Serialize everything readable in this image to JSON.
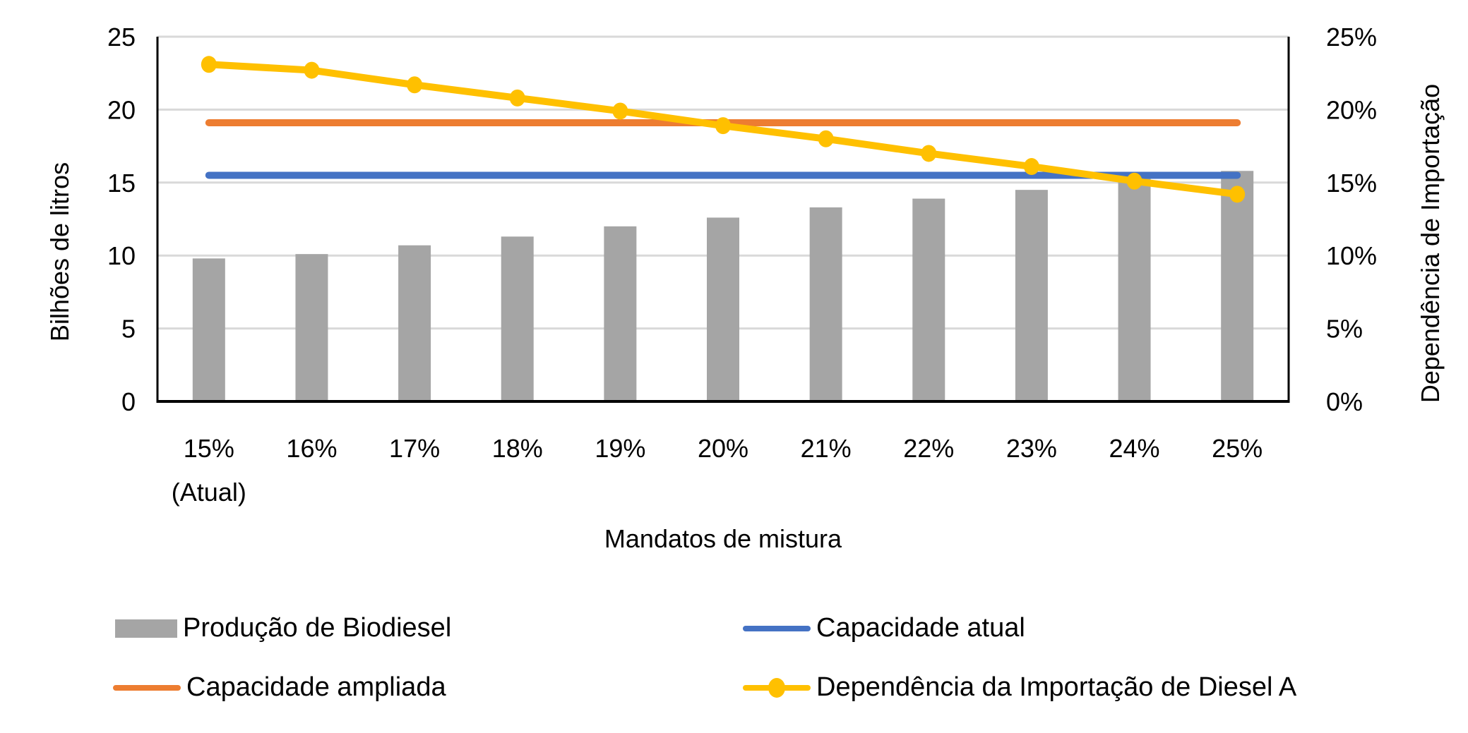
{
  "chart_data": {
    "type": "bar+line",
    "title": "",
    "xlabel": "Mandatos de mistura",
    "ylabel": "Bilhões de litros",
    "y2label": "Dependência de Importação",
    "categories": [
      [
        "15%",
        "(Atual)"
      ],
      [
        "16%"
      ],
      [
        "17%"
      ],
      [
        "18%"
      ],
      [
        "19%"
      ],
      [
        "20%"
      ],
      [
        "21%"
      ],
      [
        "22%"
      ],
      [
        "23%"
      ],
      [
        "24%"
      ],
      [
        "25%"
      ]
    ],
    "ylim": [
      0,
      25
    ],
    "yticks": [
      "0",
      "5",
      "10",
      "15",
      "20",
      "25"
    ],
    "y2lim": [
      0,
      25
    ],
    "y2ticks": [
      "0%",
      "5%",
      "10%",
      "15%",
      "20%",
      "25%"
    ],
    "grid": true,
    "legend_position": "bottom",
    "series": [
      {
        "name": "Produção de Biodiesel",
        "kind": "bar",
        "axis": "left",
        "color": "#a5a5a5",
        "values": [
          9.8,
          10.1,
          10.7,
          11.3,
          12.0,
          12.6,
          13.3,
          13.9,
          14.5,
          15.3,
          15.8
        ]
      },
      {
        "name": "Capacidade atual",
        "kind": "line",
        "axis": "left",
        "color": "#4472c4",
        "values": [
          15.5,
          15.5,
          15.5,
          15.5,
          15.5,
          15.5,
          15.5,
          15.5,
          15.5,
          15.5,
          15.5
        ]
      },
      {
        "name": "Capacidade ampliada",
        "kind": "line",
        "axis": "left",
        "color": "#ed7d31",
        "values": [
          19.1,
          19.1,
          19.1,
          19.1,
          19.1,
          19.1,
          19.1,
          19.1,
          19.1,
          19.1,
          19.1
        ]
      },
      {
        "name": "Dependência da Importação de Diesel A",
        "kind": "line-marker",
        "axis": "right",
        "unit": "%",
        "color": "#ffc000",
        "values": [
          23.1,
          22.7,
          21.7,
          20.8,
          19.9,
          18.9,
          18.0,
          17.0,
          16.1,
          15.1,
          14.2
        ]
      }
    ]
  },
  "legend": {
    "items": [
      {
        "label": "Produção de Biodiesel",
        "type": "bar",
        "color": "#a5a5a5"
      },
      {
        "label": "Capacidade atual",
        "type": "line",
        "color": "#4472c4"
      },
      {
        "label": "Capacidade ampliada",
        "type": "line",
        "color": "#ed7d31"
      },
      {
        "label": "Dependência da Importação de Diesel A",
        "type": "line-marker",
        "color": "#ffc000"
      }
    ]
  },
  "colors": {
    "gridline": "#d9d9d9",
    "axis": "#000000"
  }
}
